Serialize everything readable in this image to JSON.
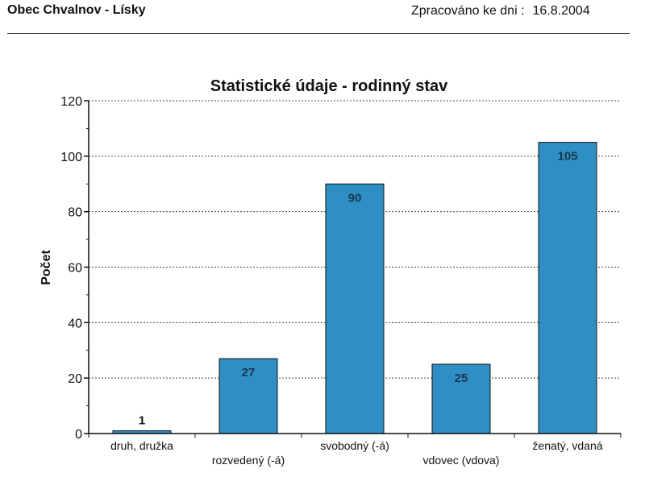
{
  "header": {
    "municipality": "Obec Chvalnov - Lísky",
    "processed_label": "Zpracováno ke dni :",
    "processed_date": "16.8.2004"
  },
  "chart_data": {
    "type": "bar",
    "title": "Statistické údaje - rodinný stav",
    "xlabel": "",
    "ylabel": "Počet",
    "ylim": [
      0,
      120
    ],
    "yticks": [
      0,
      20,
      40,
      60,
      80,
      100,
      120
    ],
    "grid": true,
    "categories": [
      "druh, družka",
      "rozvedený (-á)",
      "svobodný (-á)",
      "vdovec (vdova)",
      "ženatý, vdaná"
    ],
    "values": [
      1,
      27,
      90,
      25,
      105
    ],
    "data_labels": [
      "1",
      "27",
      "90",
      "25",
      "105"
    ],
    "bar_color": "#2f8fc4"
  }
}
